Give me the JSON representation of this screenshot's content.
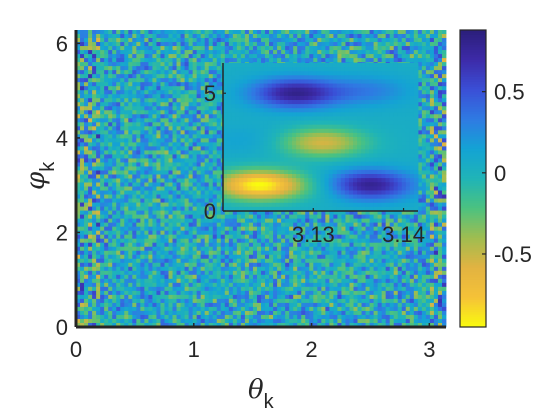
{
  "colors": {
    "background": "#ffffff",
    "axis": "#262626",
    "colormap": [
      "#f9fb0e",
      "#f5c238",
      "#e2b341",
      "#9fbd50",
      "#4bc280",
      "#1fb4b7",
      "#14a3d4",
      "#2f7ae3",
      "#3a4fd6",
      "#3d2aa8",
      "#2b1f7a"
    ]
  },
  "chart_data": [
    {
      "type": "heatmap",
      "description_kind": "main-panel",
      "xlabel": {
        "symbol": "θ",
        "sub": "k"
      },
      "ylabel": {
        "symbol": "φ",
        "sub": "k"
      },
      "xlim": [
        0,
        3.1416
      ],
      "ylim": [
        0,
        6.2832
      ],
      "xticks": [
        0,
        1,
        2,
        3
      ],
      "xtick_labels": [
        "0",
        "1",
        "2",
        "3"
      ],
      "yticks": [
        0,
        2,
        4,
        6
      ],
      "ytick_labels": [
        "0",
        "2",
        "4",
        "6"
      ],
      "pattern": "fine-grained noise with mean about 0.05 and amplitude about 0.3; slightly stronger striping near theta 0 and theta pi"
    },
    {
      "type": "heatmap",
      "description_kind": "inset",
      "xlim": [
        3.12,
        3.1416
      ],
      "ylim": [
        0,
        6.2832
      ],
      "xticks": [
        3.13,
        3.14
      ],
      "xtick_labels": [
        "3.13",
        "3.14"
      ],
      "yticks": [
        0,
        5
      ],
      "ytick_labels": [
        "0",
        "5"
      ],
      "blobs": [
        {
          "x": 3.124,
          "y": 1.1,
          "value": -0.95
        },
        {
          "x": 3.132,
          "y": 1.0,
          "value": -0.1
        },
        {
          "x": 3.136,
          "y": 1.1,
          "value": 0.85
        },
        {
          "x": 3.131,
          "y": 2.9,
          "value": -0.55
        },
        {
          "x": 3.123,
          "y": 3.0,
          "value": 0.15
        },
        {
          "x": 3.128,
          "y": 5.0,
          "value": 0.8
        },
        {
          "x": 3.136,
          "y": 5.1,
          "value": 0.3
        }
      ]
    },
    {
      "type": "colorbar",
      "clim": [
        -0.95,
        0.88
      ],
      "ticks": [
        0.5,
        0,
        -0.5
      ],
      "tick_labels": [
        "0.5",
        "0",
        "-0.5"
      ]
    }
  ]
}
